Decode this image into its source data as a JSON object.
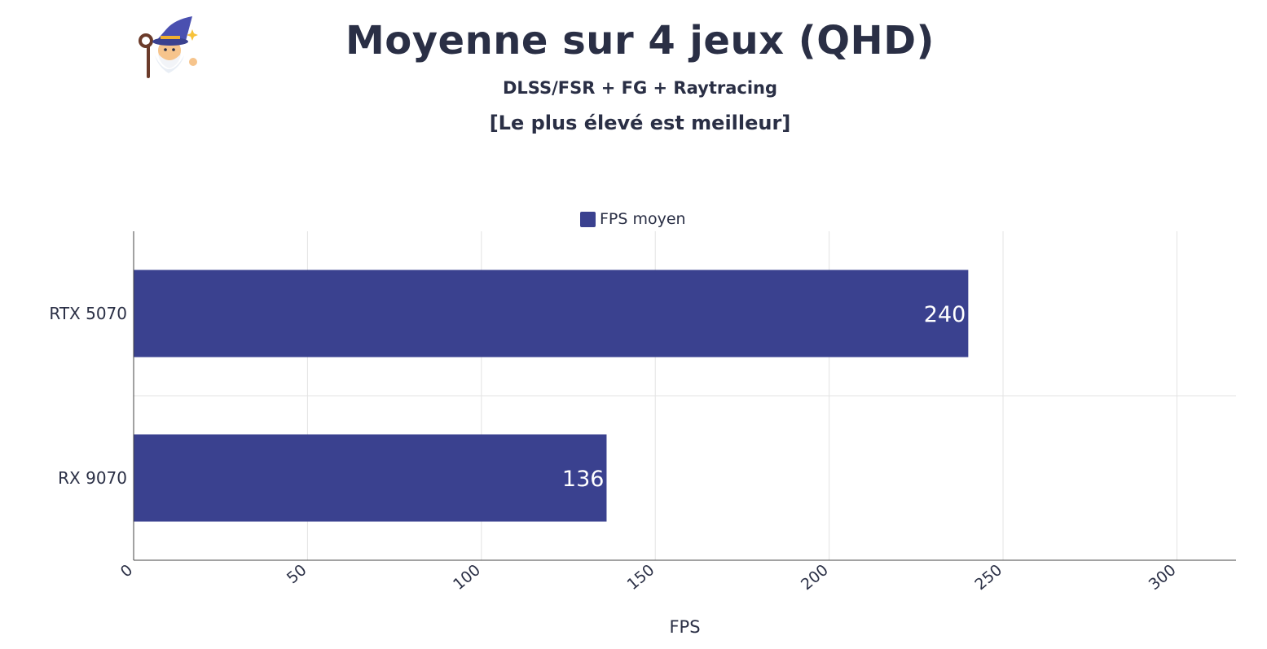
{
  "logo": {
    "icon": "wizard-mascot-icon"
  },
  "chart_data": {
    "type": "bar",
    "orientation": "horizontal",
    "title": "Moyenne sur 4 jeux (QHD)",
    "subtitle": "DLSS/FSR + FG + Raytracing",
    "note": "[Le plus élevé est meilleur]",
    "xlabel": "FPS",
    "ylabel": "",
    "categories": [
      "RTX 5070",
      "RX 9070"
    ],
    "series": [
      {
        "name": "FPS moyen",
        "values": [
          240,
          136
        ],
        "color": "#3a418f"
      }
    ],
    "data_labels": [
      "240",
      "136"
    ],
    "xlim": [
      0,
      317
    ],
    "xticks": [
      0,
      50,
      100,
      150,
      200,
      250,
      300
    ],
    "xtick_labels": [
      "0",
      "50",
      "100",
      "150",
      "200",
      "250",
      "300"
    ],
    "grid": true,
    "legend_position": "top-center"
  }
}
